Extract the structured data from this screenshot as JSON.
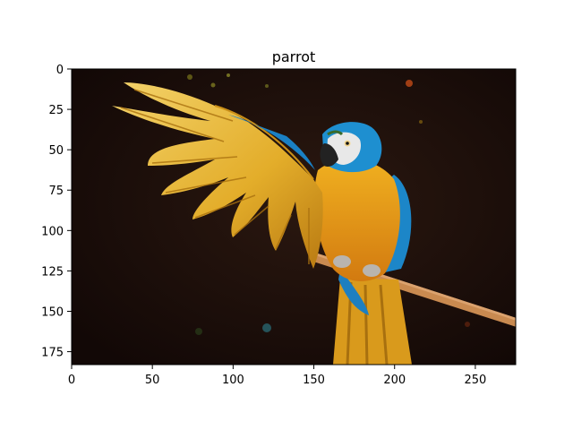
{
  "figure": {
    "title": "parrot",
    "image_description": "blue-and-gold macaw",
    "x_axis": {
      "range": [
        0,
        275
      ],
      "ticks": [
        {
          "value": 0,
          "label": "0"
        },
        {
          "value": 50,
          "label": "50"
        },
        {
          "value": 100,
          "label": "100"
        },
        {
          "value": 150,
          "label": "150"
        },
        {
          "value": 200,
          "label": "200"
        },
        {
          "value": 250,
          "label": "250"
        }
      ]
    },
    "y_axis": {
      "range": [
        0,
        183
      ],
      "inverted": true,
      "ticks": [
        {
          "value": 0,
          "label": "0"
        },
        {
          "value": 25,
          "label": "25"
        },
        {
          "value": 50,
          "label": "50"
        },
        {
          "value": 75,
          "label": "75"
        },
        {
          "value": 100,
          "label": "100"
        },
        {
          "value": 125,
          "label": "125"
        },
        {
          "value": 150,
          "label": "150"
        },
        {
          "value": 175,
          "label": "175"
        }
      ]
    }
  },
  "colors": {
    "background": "#1a0d0a",
    "wing_gold": "#e9b92f",
    "body_orange": "#e29a1c",
    "blue": "#1e8fd0",
    "perch": "#c9894f",
    "face": "#e6e6e6"
  }
}
